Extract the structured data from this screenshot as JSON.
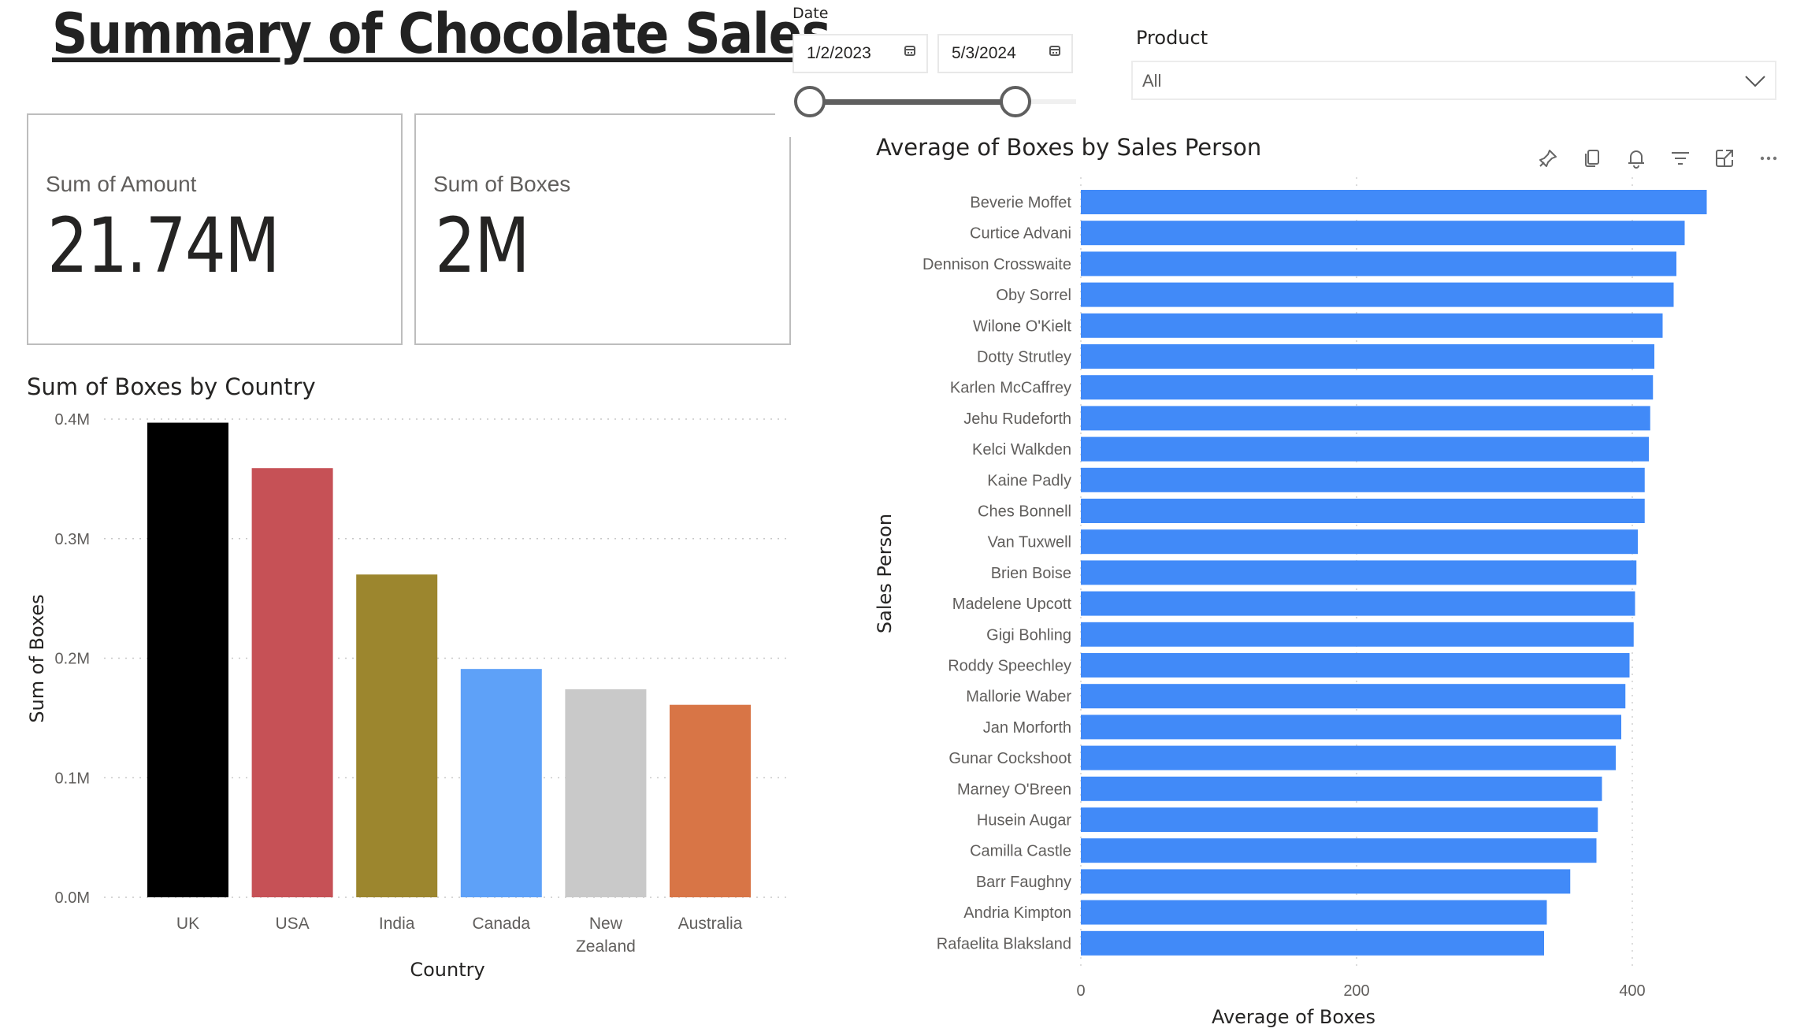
{
  "page": {
    "title": "Summary of Chocolate Sales"
  },
  "kpis": [
    {
      "label": "Sum of Amount",
      "value": "21.74M"
    },
    {
      "label": "Sum of Boxes",
      "value": "2M"
    }
  ],
  "date_slicer": {
    "label": "Date",
    "start": "1/2/2023",
    "end": "5/3/2024",
    "range_fraction": [
      0.0,
      0.78
    ]
  },
  "product_slicer": {
    "label": "Product",
    "selected": "All"
  },
  "visual_header_icons": [
    "pin-icon",
    "copy-icon",
    "bell-icon",
    "filter-icon",
    "focus-mode-icon",
    "more-options-icon"
  ],
  "colors": {
    "bar_blue": "#418af8",
    "uk": "#000000",
    "usa": "#c65156",
    "india": "#9c862e",
    "canada": "#5ea1f8",
    "new_zealand": "#c9c9c9",
    "australia": "#d87546"
  },
  "chart_data": [
    {
      "type": "bar",
      "title": "Sum of Boxes by Country",
      "xlabel": "Country",
      "ylabel": "Sum of Boxes",
      "categories": [
        "UK",
        "USA",
        "India",
        "Canada",
        "New Zealand",
        "Australia"
      ],
      "category_lines": [
        [
          "UK"
        ],
        [
          "USA"
        ],
        [
          "India"
        ],
        [
          "Canada"
        ],
        [
          "New",
          "Zealand"
        ],
        [
          "Australia"
        ]
      ],
      "values": [
        0.397,
        0.359,
        0.27,
        0.191,
        0.174,
        0.161
      ],
      "bar_colors": [
        "#000000",
        "#c65156",
        "#9c862e",
        "#5ea1f8",
        "#c9c9c9",
        "#d87546"
      ],
      "unit": "M",
      "ylim": [
        0,
        0.4
      ],
      "yticks": [
        0.0,
        0.1,
        0.2,
        0.3,
        0.4
      ],
      "ytick_labels": [
        "0.0M",
        "0.1M",
        "0.2M",
        "0.3M",
        "0.4M"
      ],
      "grid": true
    },
    {
      "type": "bar",
      "orientation": "horizontal",
      "title": "Average of Boxes by Sales Person",
      "xlabel": "Average of Boxes",
      "ylabel": "Sales Person",
      "categories": [
        "Beverie Moffet",
        "Curtice Advani",
        "Dennison Crosswaite",
        "Oby Sorrel",
        "Wilone O'Kielt",
        "Dotty Strutley",
        "Karlen McCaffrey",
        "Jehu Rudeforth",
        "Kelci Walkden",
        "Kaine Padly",
        "Ches Bonnell",
        "Van Tuxwell",
        "Brien Boise",
        "Madelene Upcott",
        "Gigi Bohling",
        "Roddy Speechley",
        "Mallorie Waber",
        "Jan Morforth",
        "Gunar Cockshoot",
        "Marney O'Breen",
        "Husein Augar",
        "Camilla Castle",
        "Barr Faughny",
        "Andria Kimpton",
        "Rafaelita Blaksland"
      ],
      "values": [
        454,
        438,
        432,
        430,
        422,
        416,
        415,
        413,
        412,
        409,
        409,
        404,
        403,
        402,
        401,
        398,
        395,
        392,
        388,
        378,
        375,
        374,
        355,
        338,
        336
      ],
      "xlim": [
        0,
        500
      ],
      "xticks": [
        0,
        200,
        400
      ],
      "xtick_labels": [
        "0",
        "200",
        "400"
      ],
      "grid": true,
      "color": "#418af8"
    }
  ]
}
